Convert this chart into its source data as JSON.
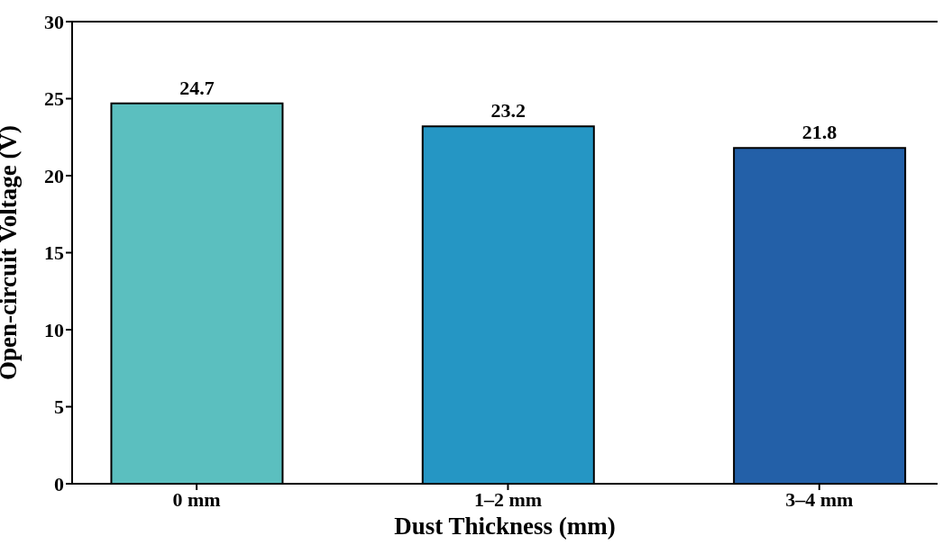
{
  "chart_data": {
    "type": "bar",
    "xlabel": "Dust Thickness (mm)",
    "ylabel": "Open-circuit Voltage (V)",
    "categories": [
      "0 mm",
      "1–2 mm",
      "3–4 mm"
    ],
    "values": [
      24.7,
      23.2,
      21.8
    ],
    "colors": [
      "#5bbfbf",
      "#2596c4",
      "#2360a8"
    ],
    "ylim": [
      0,
      30
    ],
    "yticks": [
      0,
      5,
      10,
      15,
      20,
      25,
      30
    ],
    "data_labels": true,
    "grid": false,
    "legend": false
  }
}
